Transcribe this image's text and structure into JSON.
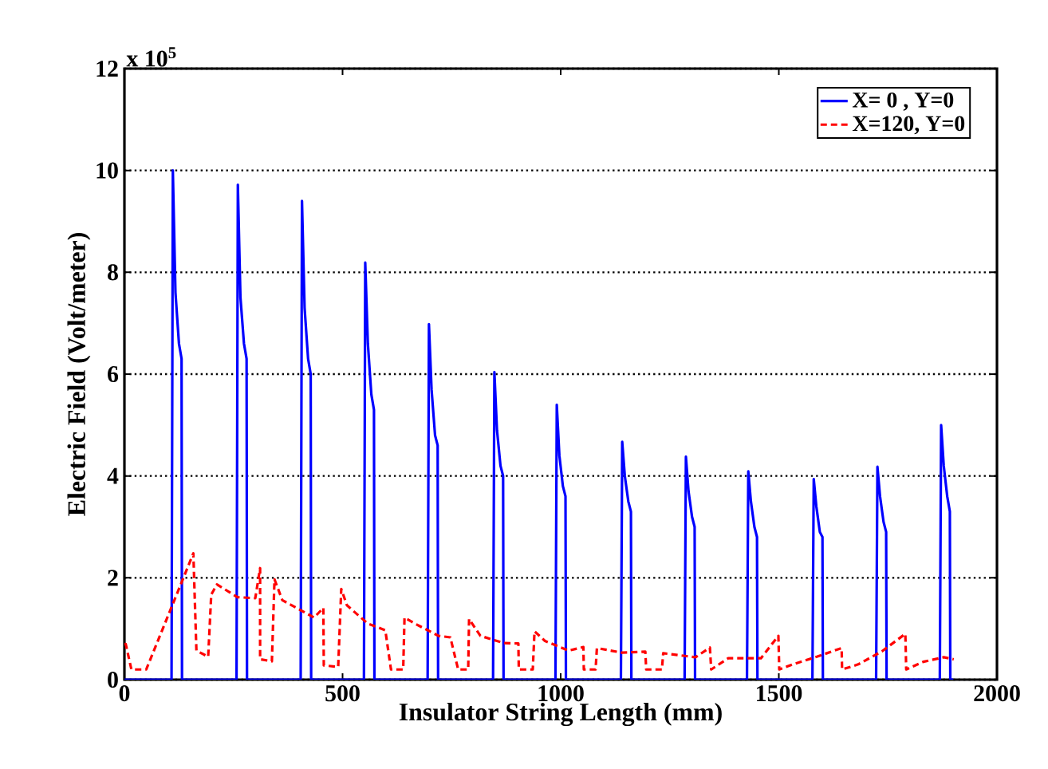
{
  "chart_data": {
    "type": "line",
    "xlabel": "Insulator String Length (mm)",
    "ylabel": "Electric Field (Volt/meter)",
    "annotations": [
      "x 10$^{5}$"
    ],
    "xlim": [
      0,
      2000
    ],
    "xticks": [
      0,
      500,
      1000,
      1500,
      2000
    ],
    "ylim": [
      0,
      12
    ],
    "yticks": [
      0,
      2,
      4,
      6,
      8,
      10,
      12
    ],
    "grid": "y",
    "legend": "top right",
    "series": [
      {
        "name": "X= 0   , Y=0",
        "color": "#0000ff",
        "line_style": "solid",
        "x": [
          0,
          108,
          111,
          117,
          125,
          131,
          132,
          257,
          260,
          266,
          274,
          280,
          281,
          404,
          407,
          413,
          421,
          427,
          428,
          549,
          552,
          558,
          566,
          572,
          573,
          695,
          698,
          704,
          712,
          718,
          719,
          845,
          848,
          854,
          862,
          868,
          869,
          988,
          991,
          997,
          1005,
          1011,
          1012,
          1138,
          1141,
          1147,
          1155,
          1161,
          1162,
          1284,
          1287,
          1293,
          1301,
          1307,
          1308,
          1427,
          1430,
          1436,
          1444,
          1450,
          1451,
          1577,
          1580,
          1586,
          1594,
          1600,
          1601,
          1723,
          1726,
          1732,
          1740,
          1746,
          1747,
          1869,
          1872,
          1878,
          1886,
          1892,
          1893,
          1900
        ],
        "values": [
          0,
          0,
          10.0,
          7.6,
          6.6,
          6.3,
          0,
          0,
          9.72,
          7.5,
          6.6,
          6.3,
          0,
          0,
          9.4,
          7.3,
          6.3,
          6.0,
          0,
          0,
          8.19,
          6.6,
          5.6,
          5.3,
          0,
          0,
          6.98,
          5.7,
          4.8,
          4.6,
          0,
          0,
          6.04,
          4.9,
          4.2,
          4.0,
          0,
          0,
          5.4,
          4.4,
          3.8,
          3.6,
          0,
          0,
          4.67,
          4.0,
          3.5,
          3.3,
          0,
          0,
          4.38,
          3.7,
          3.2,
          3.0,
          0,
          0,
          4.09,
          3.5,
          3.0,
          2.8,
          0,
          0,
          3.94,
          3.4,
          2.9,
          2.8,
          0,
          0,
          4.18,
          3.6,
          3.1,
          2.9,
          0,
          0,
          5.0,
          4.2,
          3.6,
          3.3,
          0,
          0
        ]
      },
      {
        "name": "X=120, Y=0",
        "color": "#ff0000",
        "line_style": "dashed",
        "x": [
          0,
          3,
          16,
          50,
          158,
          165,
          192,
          199,
          212,
          259,
          300,
          311,
          311,
          338,
          344,
          362,
          435,
          456,
          457,
          490,
          497,
          510,
          558,
          598,
          611,
          639,
          642,
          666,
          720,
          747,
          765,
          788,
          790,
          816,
          869,
          903,
          904,
          936,
          940,
          964,
          1018,
          1052,
          1053,
          1080,
          1083,
          1140,
          1194,
          1196,
          1232,
          1235,
          1309,
          1342,
          1345,
          1384,
          1459,
          1499,
          1501,
          1532,
          1587,
          1644,
          1645,
          1682,
          1737,
          1790,
          1792,
          1831,
          1878,
          1901
        ],
        "values": [
          0.7,
          0.7,
          0.2,
          0.2,
          2.48,
          0.57,
          0.45,
          1.67,
          1.87,
          1.62,
          1.6,
          2.19,
          0.4,
          0.36,
          1.97,
          1.56,
          1.22,
          1.41,
          0.28,
          0.25,
          1.78,
          1.46,
          1.1,
          0.97,
          0.2,
          0.2,
          1.22,
          1.1,
          0.86,
          0.83,
          0.2,
          0.2,
          1.19,
          0.86,
          0.72,
          0.71,
          0.2,
          0.2,
          0.95,
          0.76,
          0.57,
          0.64,
          0.2,
          0.2,
          0.62,
          0.53,
          0.55,
          0.2,
          0.2,
          0.52,
          0.44,
          0.63,
          0.2,
          0.42,
          0.42,
          0.86,
          0.2,
          0.3,
          0.45,
          0.62,
          0.2,
          0.3,
          0.56,
          0.9,
          0.2,
          0.35,
          0.44,
          0.4
        ]
      }
    ]
  }
}
